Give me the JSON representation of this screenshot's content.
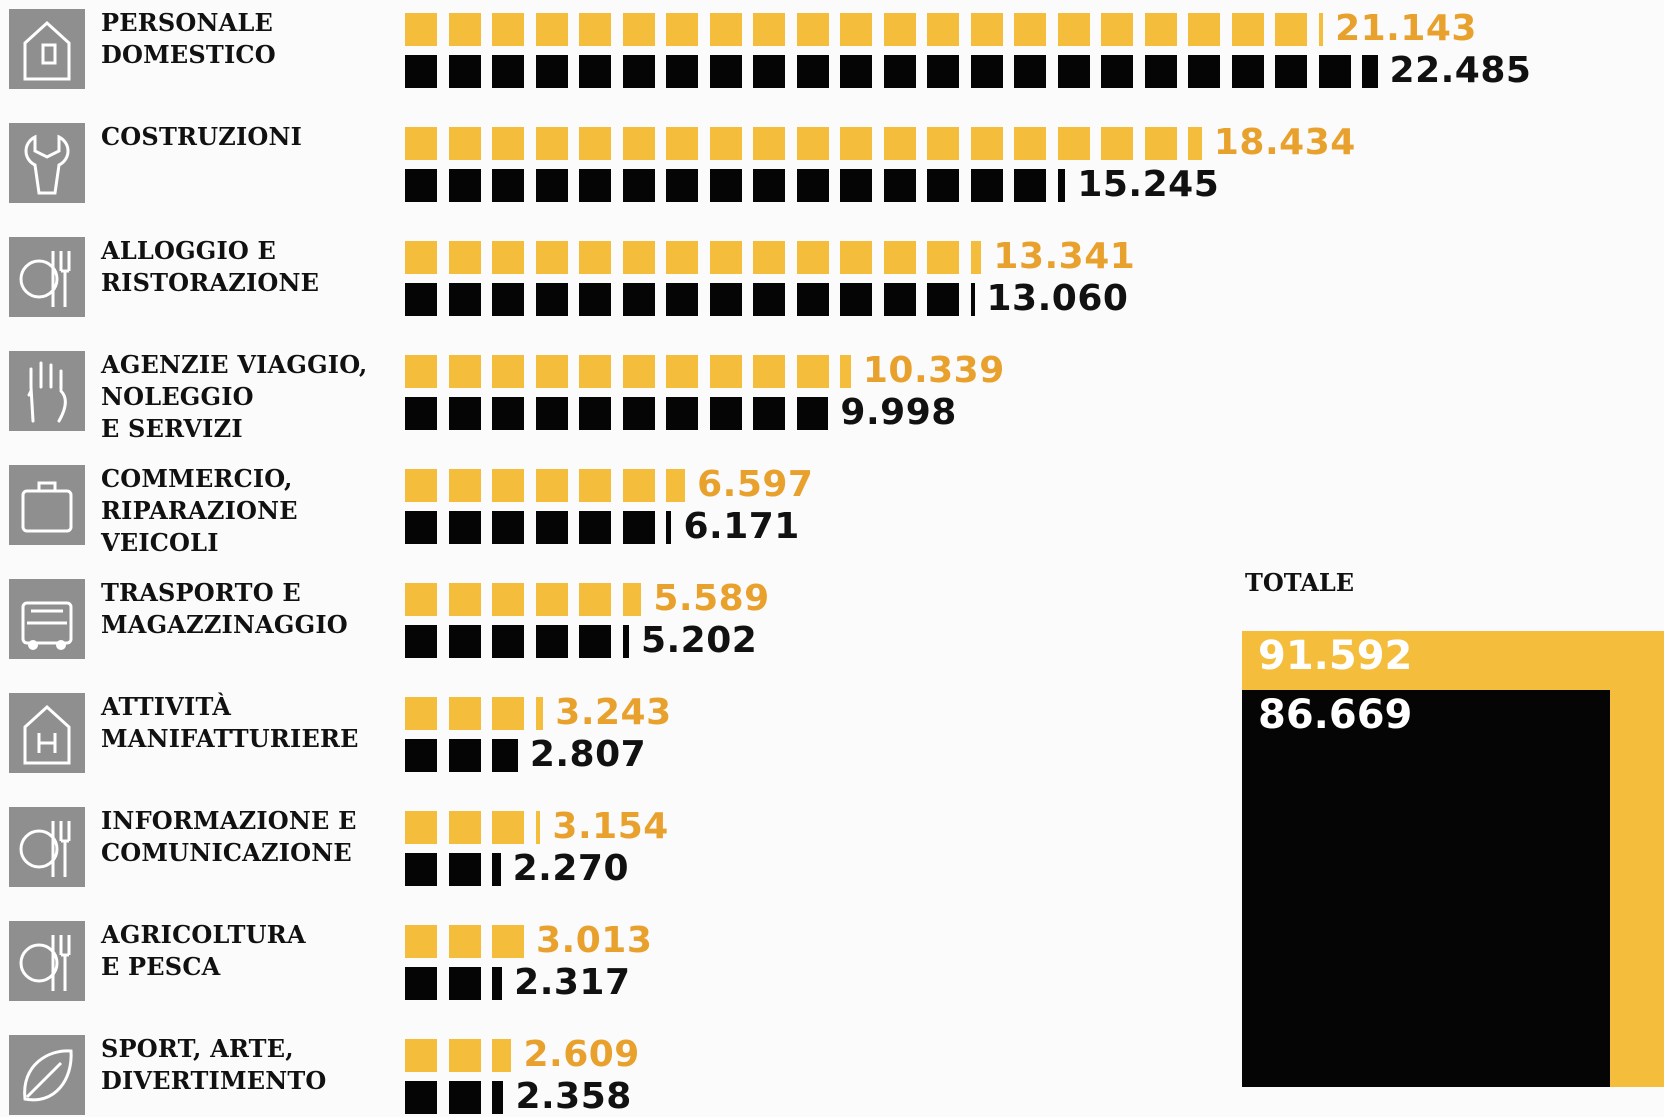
{
  "colors": {
    "series_a": "#f4bd3c",
    "series_b": "#050505",
    "value_a": "#e9a12e",
    "icon_bg": "#8f8f8f"
  },
  "chart_data": {
    "type": "bar",
    "categories": [
      "PERSONALE\nDOMESTICO",
      "COSTRUZIONI",
      "ALLOGGIO E\nRISTORAZIONE",
      "AGENZIE VIAGGIO,\nNOLEGGIO\nE SERVIZI",
      "COMMERCIO,\nRIPARAZIONE\nVEICOLI",
      "TRASPORTO E\nMAGAZZINAGGIO",
      "ATTIVITÀ\nMANIFATTURIERE",
      "INFORMAZIONE E\nCOMUNICAZIONE",
      "AGRICOLTURA\nE PESCA",
      "SPORT, ARTE,\nDIVERTIMENTO"
    ],
    "icons": [
      "house-door-icon",
      "wrench-icon",
      "plate-cutlery-icon",
      "hand-icon",
      "briefcase-icon",
      "truck-icon",
      "house-h-icon",
      "plate-cutlery-icon",
      "plate-cutlery-icon",
      "leaf-icon"
    ],
    "series": [
      {
        "color": "#f4bd3c",
        "values": [
          21143,
          18434,
          13341,
          10339,
          6597,
          5589,
          3243,
          3154,
          3013,
          2609
        ],
        "labels": [
          "21.143",
          "18.434",
          "13.341",
          "10.339",
          "6.597",
          "5.589",
          "3.243",
          "3.154",
          "3.013",
          "2.609"
        ]
      },
      {
        "color": "#050505",
        "values": [
          22485,
          15245,
          13060,
          9998,
          6171,
          5202,
          2807,
          2270,
          2317,
          2358
        ],
        "labels": [
          "22.485",
          "15.245",
          "13.060",
          "9.998",
          "6.171",
          "5.202",
          "2.807",
          "2.270",
          "2.317",
          "2.358"
        ]
      }
    ],
    "unit_per_square": 1000,
    "total": {
      "title": "TOTALE",
      "values": [
        91592,
        86669
      ],
      "labels": [
        "91.592",
        "86.669"
      ]
    }
  }
}
